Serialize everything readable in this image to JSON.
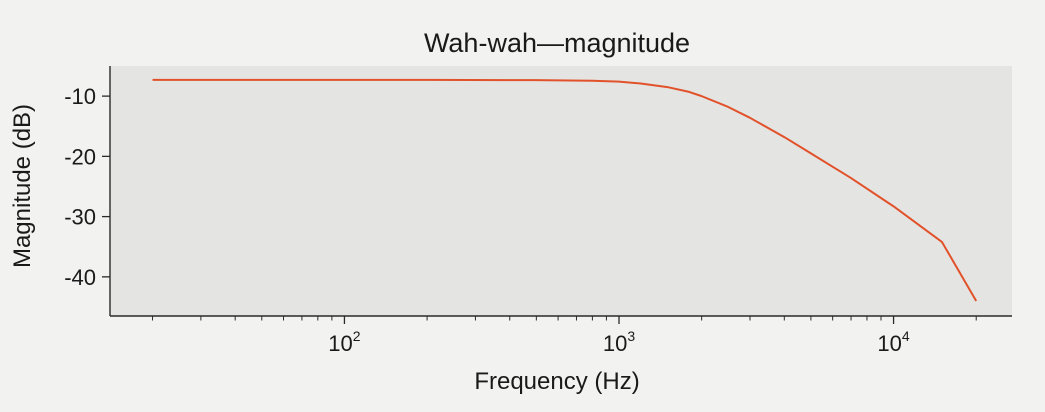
{
  "chart_data": {
    "type": "line",
    "title": "Wah-wah—magnitude",
    "xlabel": "Frequency (Hz)",
    "ylabel": "Magnitude (dB)",
    "x_scale": "log",
    "xlim": [
      14,
      27000
    ],
    "ylim": [
      -46.5,
      -5
    ],
    "grid": false,
    "x_ticks": [
      {
        "value": 100,
        "base": "10",
        "exp": "2"
      },
      {
        "value": 1000,
        "base": "10",
        "exp": "3"
      },
      {
        "value": 10000,
        "base": "10",
        "exp": "4"
      }
    ],
    "y_ticks": [
      {
        "value": -10,
        "label": "-10"
      },
      {
        "value": -20,
        "label": "-20"
      },
      {
        "value": -30,
        "label": "-30"
      },
      {
        "value": -40,
        "label": "-40"
      }
    ],
    "series": [
      {
        "color": "#e2522a",
        "x": [
          20,
          50,
          100,
          200,
          500,
          800,
          1000,
          1200,
          1500,
          1800,
          2000,
          2500,
          3000,
          4000,
          5000,
          7000,
          10000,
          15000,
          20000
        ],
        "y": [
          -7.3,
          -7.3,
          -7.3,
          -7.3,
          -7.35,
          -7.45,
          -7.6,
          -7.9,
          -8.5,
          -9.3,
          -10.0,
          -11.8,
          -13.6,
          -16.8,
          -19.5,
          -23.6,
          -28.3,
          -34.2,
          -44.0
        ]
      }
    ]
  },
  "colors": {
    "plot_background": "#e4e4e3",
    "axis": "#2a2a2a"
  }
}
